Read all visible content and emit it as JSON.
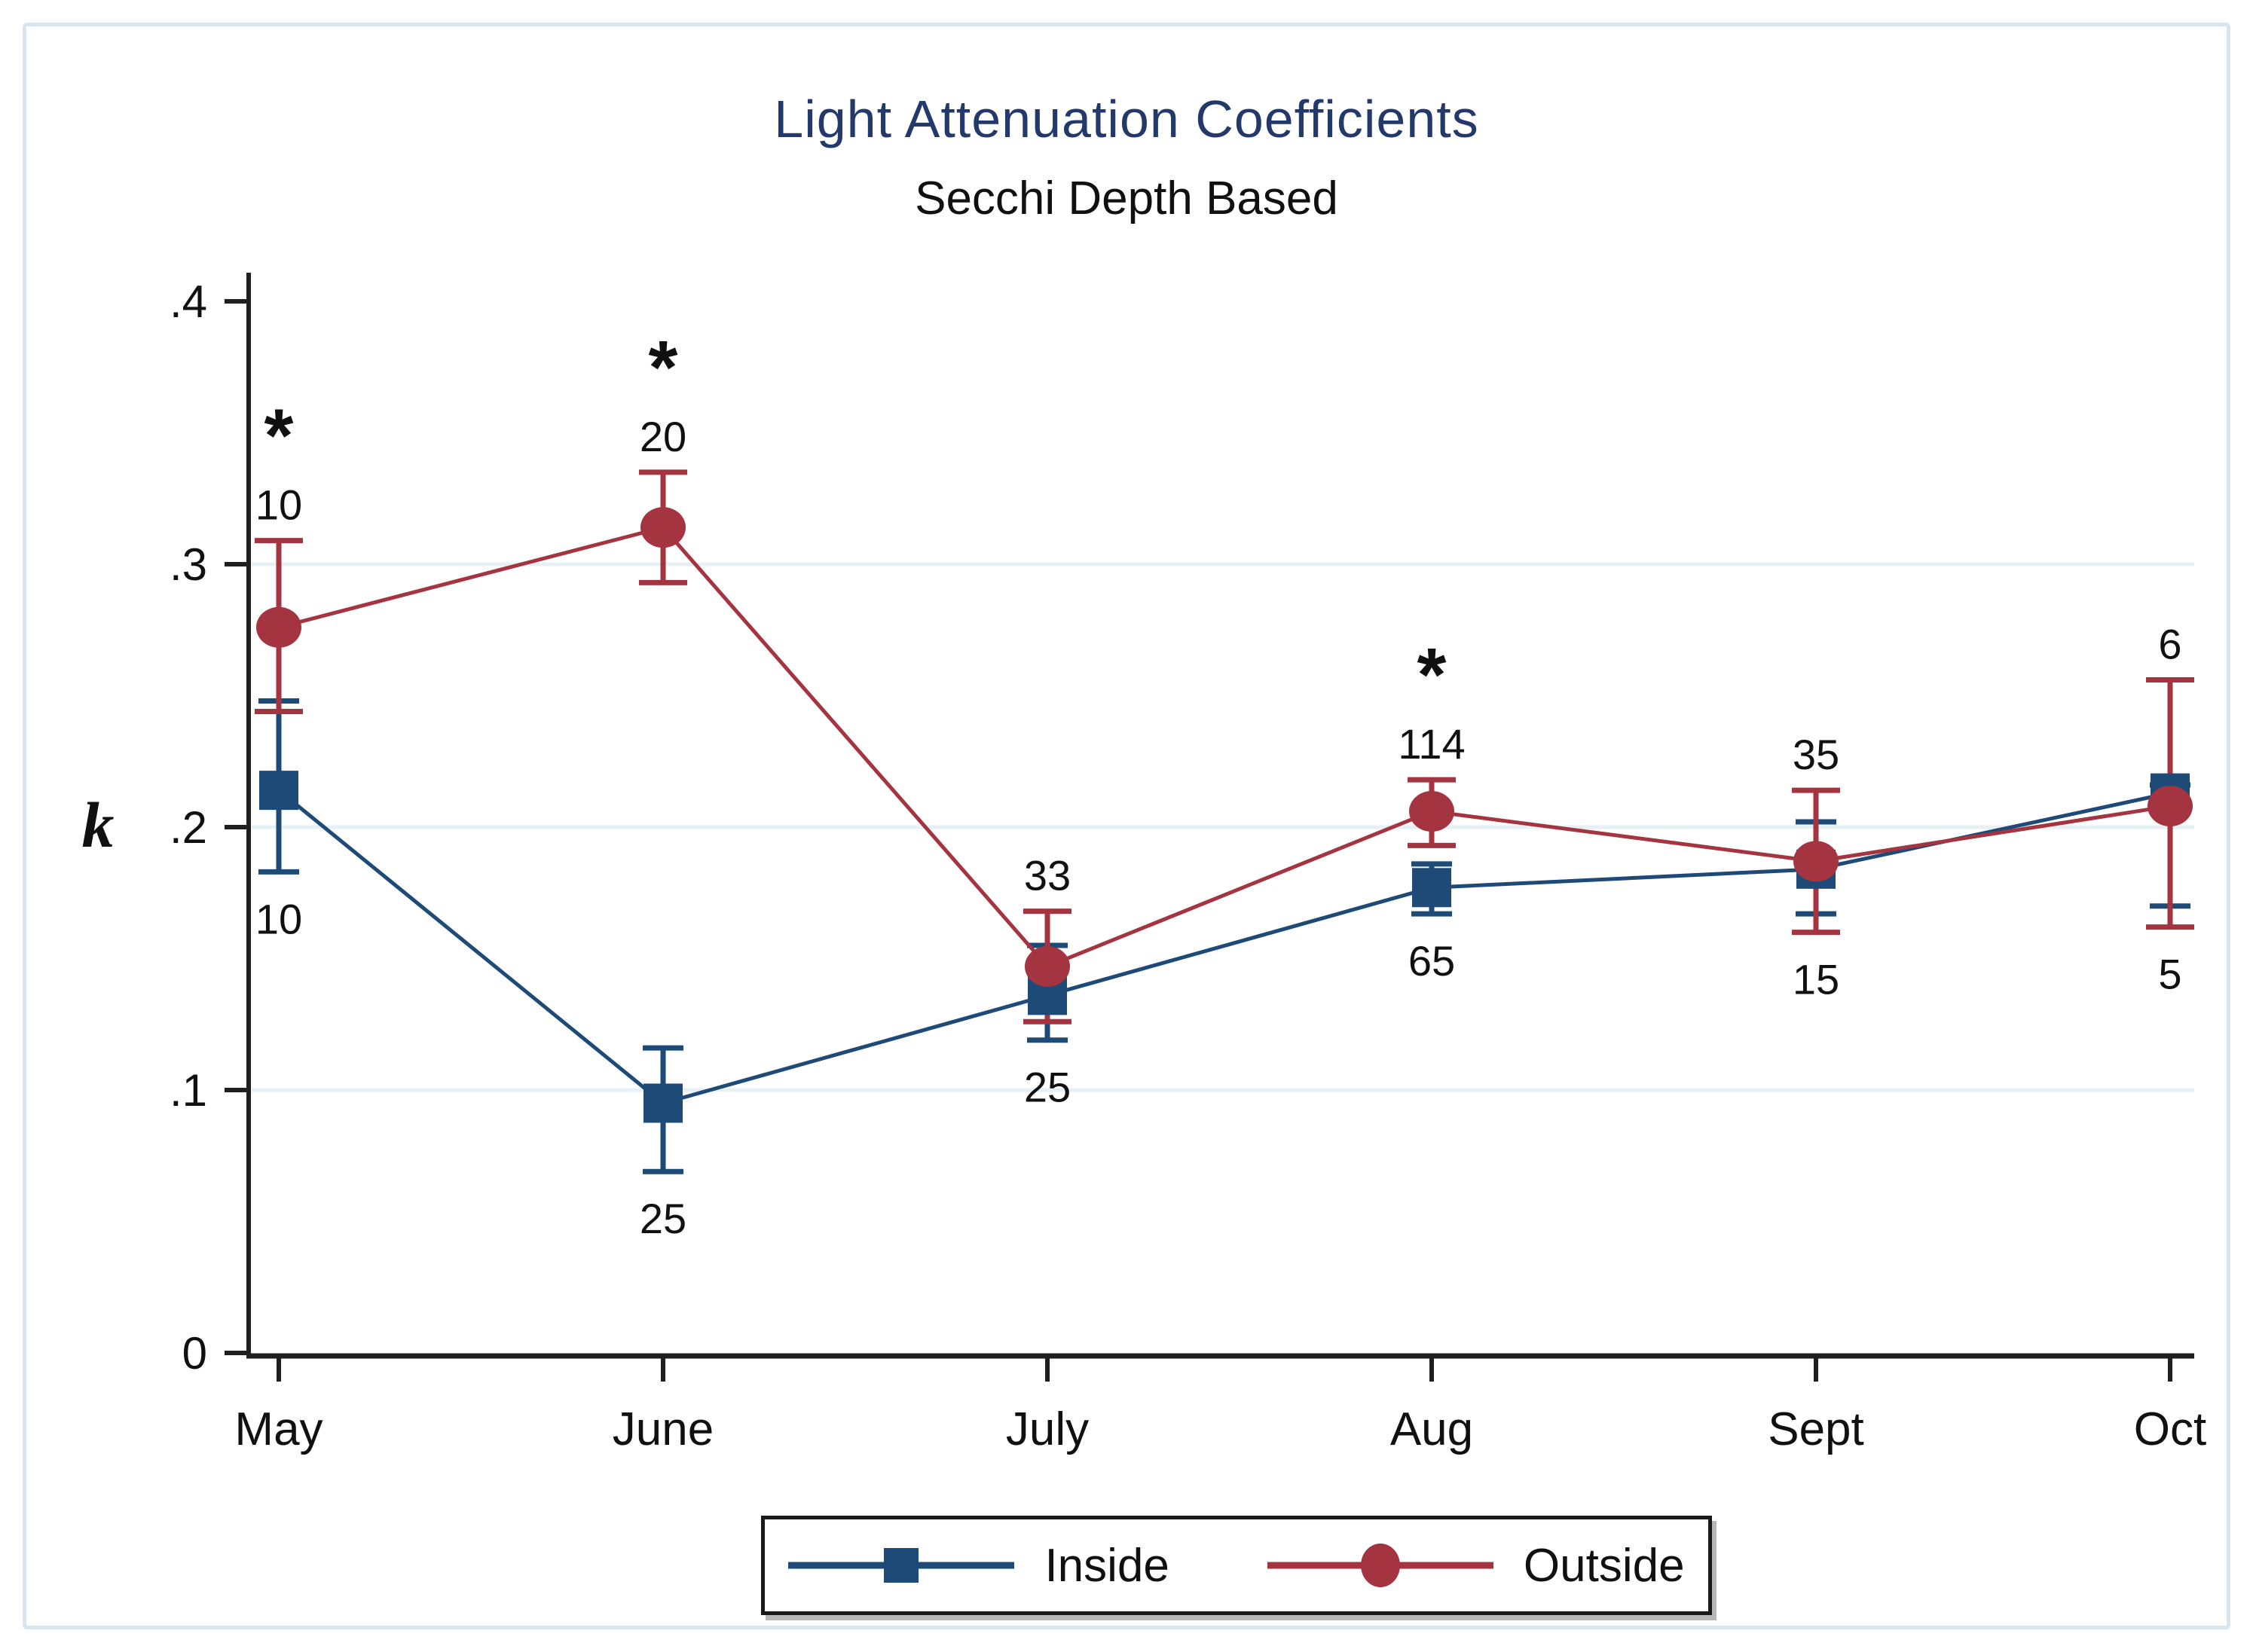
{
  "window": {
    "background": "#ffffff",
    "frame_border_color": "#d9e6ed"
  },
  "colors": {
    "title": "#24396b",
    "text": "#101010",
    "axis": "#1f1f1f",
    "gridline": "#e7f0f4",
    "inside_series": "#1e4a77",
    "outside_series": "#a43540",
    "legend_border": "#1a1a1a"
  },
  "chart_data": {
    "type": "line",
    "title": "Light Attenuation Coefficients",
    "subtitle": "Secchi Depth Based",
    "ylabel": "k",
    "xlabel": "",
    "categories": [
      "May",
      "June",
      "July",
      "Aug",
      "Sept",
      "Oct"
    ],
    "y_ticks": [
      {
        "label": "0",
        "value": 0
      },
      {
        "label": ".1",
        "value": 0.1
      },
      {
        "label": ".2",
        "value": 0.2
      },
      {
        "label": ".3",
        "value": 0.3
      },
      {
        "label": ".4",
        "value": 0.4
      }
    ],
    "gridline_values": [
      0.1,
      0.2,
      0.3
    ],
    "ylim": [
      0,
      0.41
    ],
    "grid": true,
    "legend_position": "bottom",
    "series": [
      {
        "name": "Inside",
        "marker": "square",
        "color": "#1e4a77",
        "values": [
          0.214,
          0.095,
          0.136,
          0.177,
          0.184,
          0.213
        ],
        "ci_low": [
          0.183,
          0.069,
          0.119,
          0.167,
          0.167,
          0.17
        ],
        "ci_high": [
          0.248,
          0.116,
          0.155,
          0.186,
          0.202,
          0.216
        ],
        "n_labels": [
          "10",
          "25",
          "25",
          "65",
          "15",
          "5"
        ]
      },
      {
        "name": "Outside",
        "marker": "circle",
        "color": "#a43540",
        "values": [
          0.276,
          0.314,
          0.147,
          0.206,
          0.187,
          0.208
        ],
        "ci_low": [
          0.244,
          0.293,
          0.126,
          0.193,
          0.16,
          0.162
        ],
        "ci_high": [
          0.309,
          0.335,
          0.168,
          0.218,
          0.214,
          0.256
        ],
        "n_labels": [
          "10",
          "20",
          "33",
          "114",
          "35",
          "6"
        ]
      }
    ],
    "significant_categories": [
      "May",
      "June",
      "Aug"
    ],
    "significance_symbol": "*"
  }
}
